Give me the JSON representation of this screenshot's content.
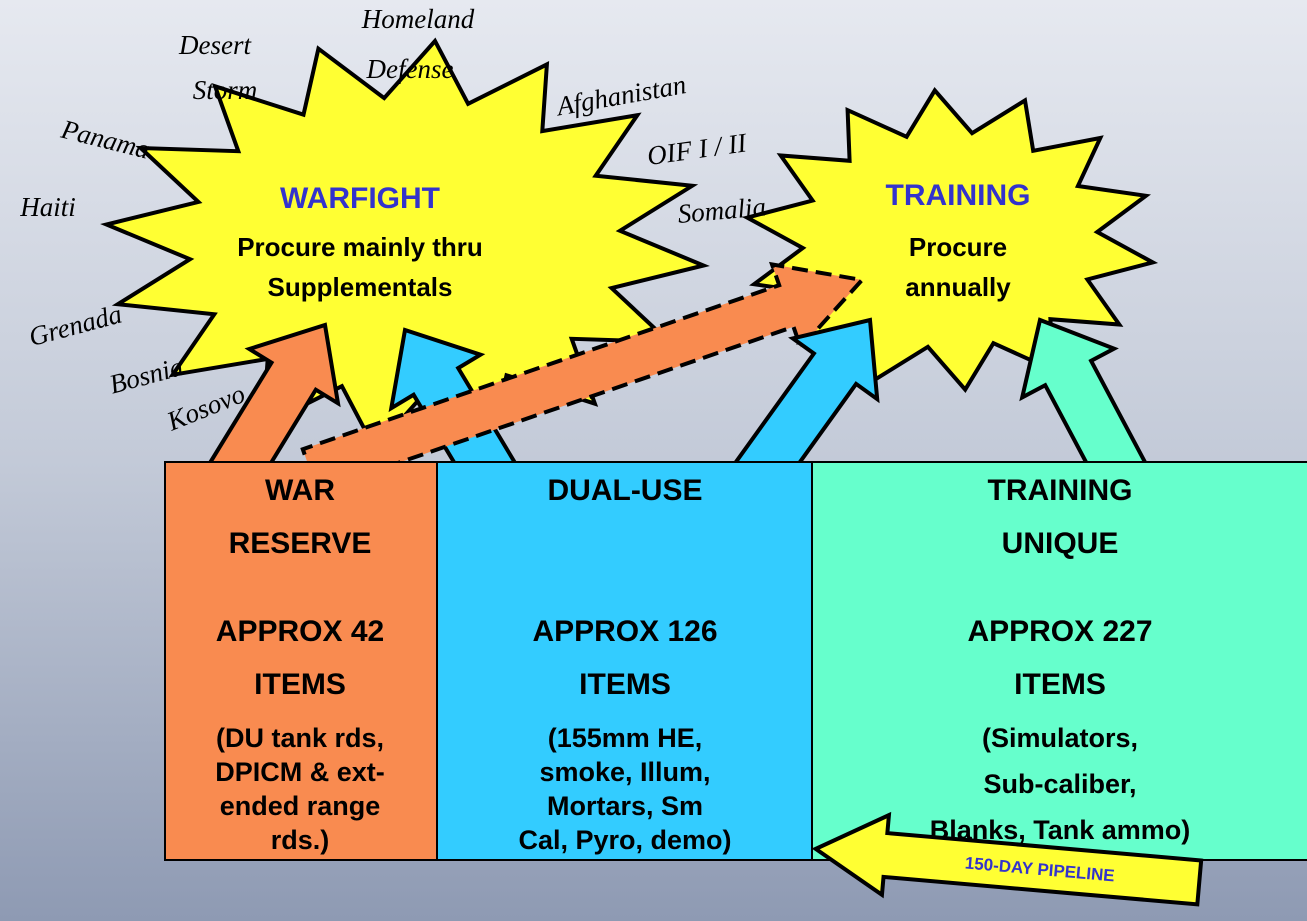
{
  "stars": {
    "warfight": {
      "title": "WARFIGHT",
      "lines": [
        "Procure mainly thru",
        "Supplementals"
      ]
    },
    "training": {
      "title": "TRAINING",
      "lines": [
        "Procure",
        "annually"
      ]
    }
  },
  "operations": [
    "Desert",
    "Storm",
    "Homeland",
    "Defense",
    "Afghanistan",
    "Panama",
    "OIF I / II",
    "Haiti",
    "Somalia",
    "Grenada",
    "Bosnia",
    "Kosovo"
  ],
  "boxes": [
    {
      "heading": [
        "WAR",
        "RESERVE"
      ],
      "count": [
        "APPROX 42",
        "ITEMS"
      ],
      "examples": [
        "(DU tank rds,",
        "DPICM & ext-",
        "ended range",
        "rds.)"
      ]
    },
    {
      "heading": [
        "DUAL-USE"
      ],
      "count": [
        "APPROX 126",
        "ITEMS"
      ],
      "examples": [
        "(155mm HE,",
        "smoke, Illum,",
        "Mortars, Sm",
        "Cal, Pyro, demo)"
      ]
    },
    {
      "heading": [
        "TRAINING",
        "UNIQUE"
      ],
      "count": [
        "APPROX 227",
        "ITEMS"
      ],
      "examples": [
        "(Simulators,",
        "Sub-caliber,",
        "Blanks, Tank ammo)"
      ]
    }
  ],
  "pipeline": "150-DAY PIPELINE"
}
